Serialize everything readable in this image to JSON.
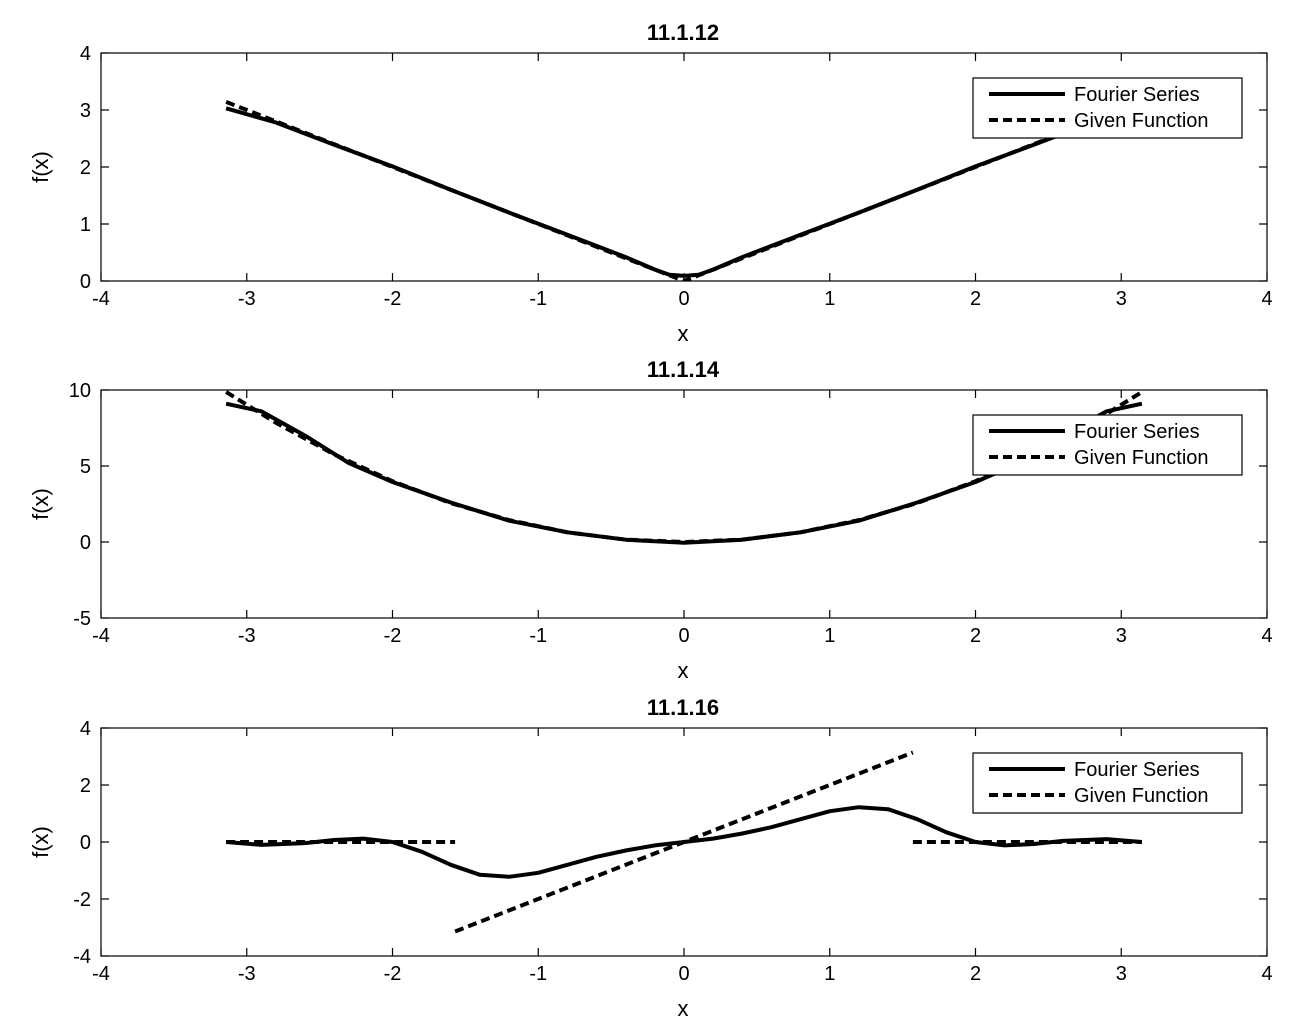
{
  "chart_data": [
    {
      "type": "line",
      "title": "11.1.12",
      "xlabel": "x",
      "ylabel": "f(x)",
      "xlim": [
        -4,
        4
      ],
      "ylim": [
        0,
        4
      ],
      "xticks": [
        "-4",
        "-3",
        "-2",
        "-1",
        "0",
        "1",
        "2",
        "3",
        "4"
      ],
      "yticks": [
        "0",
        "1",
        "2",
        "3",
        "4"
      ],
      "legend_position": "top-right",
      "grid": false,
      "series": [
        {
          "name": "Fourier Series",
          "style": "solid",
          "x": [
            -3.1416,
            -2.8,
            -2.4,
            -2.0,
            -1.6,
            -1.2,
            -0.8,
            -0.4,
            -0.2,
            -0.1,
            0.0,
            0.1,
            0.2,
            0.4,
            0.8,
            1.2,
            1.6,
            2.0,
            2.4,
            2.8,
            3.1416
          ],
          "y": [
            3.03,
            2.78,
            2.39,
            2.01,
            1.6,
            1.2,
            0.81,
            0.42,
            0.2,
            0.11,
            0.09,
            0.11,
            0.2,
            0.42,
            0.81,
            1.2,
            1.6,
            2.01,
            2.39,
            2.78,
            3.03
          ]
        },
        {
          "name": "Given Function",
          "style": "dashed",
          "x": [
            -3.1416,
            0.0,
            3.1416
          ],
          "y": [
            3.1416,
            0.0,
            3.1416
          ]
        }
      ]
    },
    {
      "type": "line",
      "title": "11.1.14",
      "xlabel": "x",
      "ylabel": "f(x)",
      "xlim": [
        -4,
        4
      ],
      "ylim": [
        -5,
        10
      ],
      "xticks": [
        "-4",
        "-3",
        "-2",
        "-1",
        "0",
        "1",
        "2",
        "3",
        "4"
      ],
      "yticks": [
        "-5",
        "0",
        "5",
        "10"
      ],
      "legend_position": "top-right",
      "grid": false,
      "series": [
        {
          "name": "Fourier Series",
          "style": "solid",
          "x": [
            -3.1416,
            -2.9,
            -2.6,
            -2.3,
            -2.0,
            -1.6,
            -1.2,
            -0.8,
            -0.4,
            0.0,
            0.4,
            0.8,
            1.2,
            1.6,
            2.0,
            2.3,
            2.6,
            2.9,
            3.1416
          ],
          "y": [
            9.1,
            8.6,
            7.0,
            5.2,
            3.95,
            2.6,
            1.4,
            0.64,
            0.15,
            -0.05,
            0.15,
            0.64,
            1.4,
            2.6,
            3.95,
            5.2,
            7.0,
            8.6,
            9.1
          ]
        },
        {
          "name": "Given Function",
          "style": "dashed",
          "x": [
            -3.1416,
            -2.8,
            -2.4,
            -2.0,
            -1.6,
            -1.2,
            -0.8,
            -0.4,
            0.0,
            0.4,
            0.8,
            1.2,
            1.6,
            2.0,
            2.4,
            2.8,
            3.1416
          ],
          "y": [
            9.87,
            7.84,
            5.76,
            4.0,
            2.56,
            1.44,
            0.64,
            0.16,
            0.0,
            0.16,
            0.64,
            1.44,
            2.56,
            4.0,
            5.76,
            7.84,
            9.87
          ]
        }
      ]
    },
    {
      "type": "line",
      "title": "11.1.16",
      "xlabel": "x",
      "ylabel": "f(x)",
      "xlim": [
        -4,
        4
      ],
      "ylim": [
        -4,
        4
      ],
      "xticks": [
        "-4",
        "-3",
        "-2",
        "-1",
        "0",
        "1",
        "2",
        "3",
        "4"
      ],
      "yticks": [
        "-4",
        "-2",
        "0",
        "2",
        "4"
      ],
      "legend_position": "top-right",
      "grid": false,
      "series": [
        {
          "name": "Fourier Series",
          "style": "solid",
          "x": [
            -3.1416,
            -2.9,
            -2.6,
            -2.4,
            -2.2,
            -2.0,
            -1.8,
            -1.6,
            -1.4,
            -1.2,
            -1.0,
            -0.8,
            -0.6,
            -0.4,
            -0.2,
            0.0,
            0.2,
            0.4,
            0.6,
            0.8,
            1.0,
            1.2,
            1.4,
            1.6,
            1.8,
            2.0,
            2.2,
            2.4,
            2.6,
            2.9,
            3.1416
          ],
          "y": [
            0.0,
            -0.1,
            -0.04,
            0.07,
            0.12,
            0.0,
            -0.34,
            -0.8,
            -1.15,
            -1.22,
            -1.08,
            -0.8,
            -0.52,
            -0.3,
            -0.12,
            0.0,
            0.12,
            0.3,
            0.52,
            0.8,
            1.08,
            1.22,
            1.15,
            0.8,
            0.34,
            0.0,
            -0.12,
            -0.07,
            0.04,
            0.1,
            0.0
          ]
        },
        {
          "name": "Given Function",
          "style": "dashed",
          "segments": [
            {
              "x": [
                -3.1416,
                -1.5708
              ],
              "y": [
                0.0,
                0.0
              ]
            },
            {
              "x": [
                -1.5708,
                1.5708
              ],
              "y": [
                -3.1416,
                3.1416
              ]
            },
            {
              "x": [
                1.5708,
                3.1416
              ],
              "y": [
                0.0,
                0.0
              ]
            }
          ]
        }
      ]
    }
  ]
}
